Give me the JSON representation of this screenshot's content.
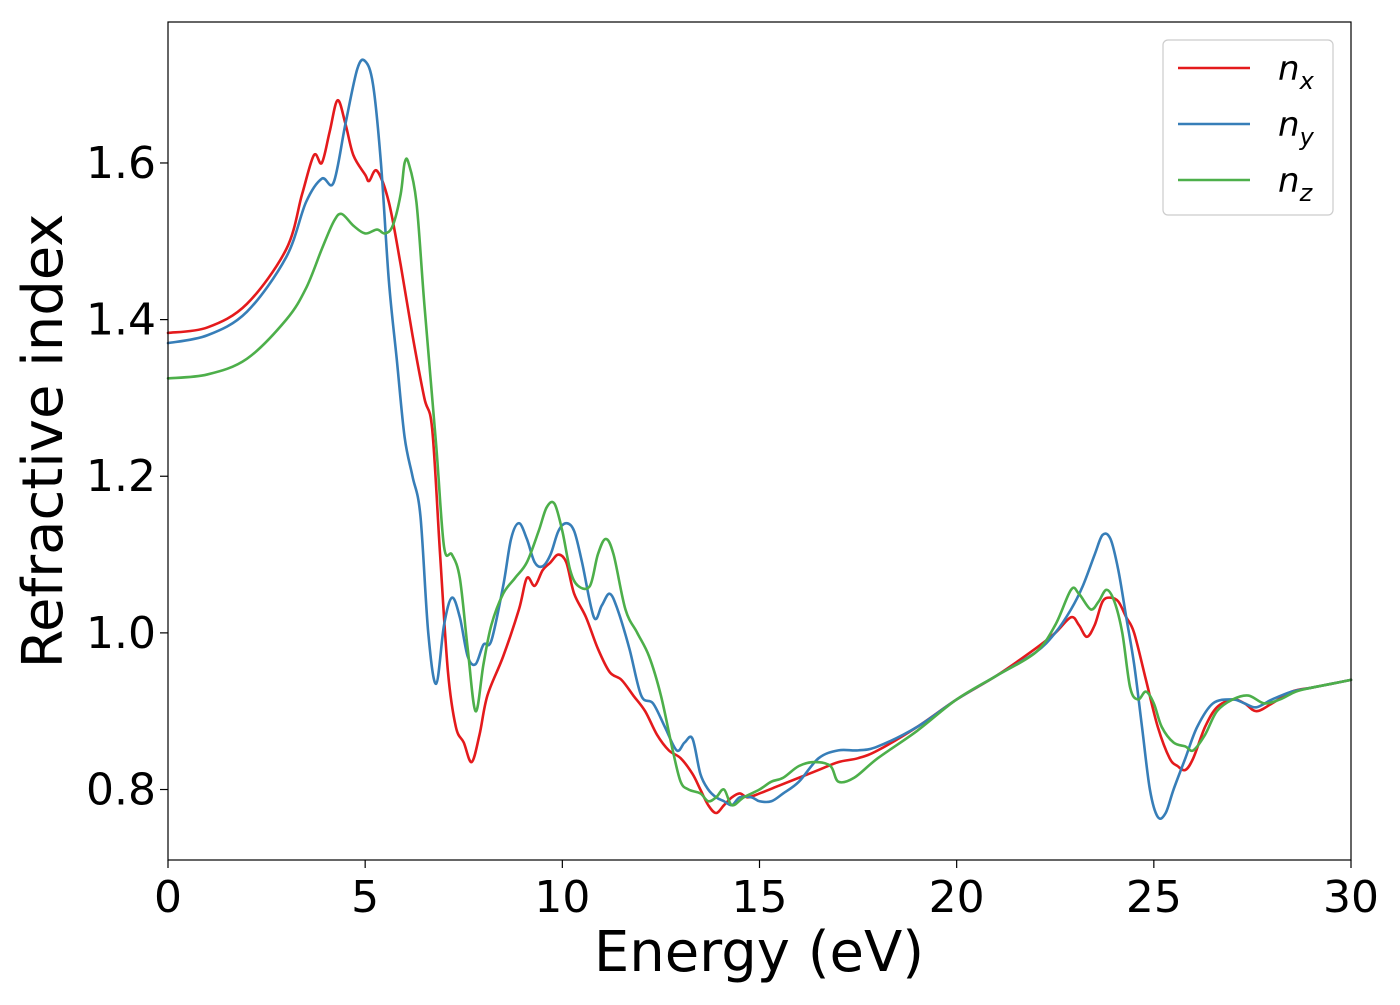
{
  "chart_data": {
    "type": "line",
    "title": "",
    "xlabel": "Energy (eV)",
    "ylabel": "Refractive index",
    "xlim": [
      0,
      30
    ],
    "ylim": [
      0.71,
      1.78
    ],
    "xticks": [
      0,
      5,
      10,
      15,
      20,
      25,
      30
    ],
    "yticks": [
      0.8,
      1.0,
      1.2,
      1.4,
      1.6
    ],
    "xtick_labels": [
      "0",
      "5",
      "10",
      "15",
      "20",
      "25",
      "30"
    ],
    "ytick_labels": [
      "0.8",
      "1.0",
      "1.2",
      "1.4",
      "1.6"
    ],
    "grid": false,
    "legend_position": "top-right",
    "series": [
      {
        "name": "n_x",
        "legend_main": "n",
        "legend_sub": "x",
        "color": "#e41a1c",
        "x": [
          0,
          1,
          2,
          3,
          3.4,
          3.7,
          3.9,
          4.1,
          4.3,
          4.5,
          4.7,
          5.0,
          5.1,
          5.3,
          5.6,
          5.9,
          6.2,
          6.5,
          6.7,
          6.9,
          7.1,
          7.3,
          7.5,
          7.7,
          7.9,
          8.1,
          8.5,
          8.9,
          9.1,
          9.3,
          9.5,
          9.7,
          9.9,
          10.1,
          10.3,
          10.6,
          10.9,
          11.2,
          11.5,
          11.8,
          12.1,
          12.4,
          12.7,
          13.0,
          13.3,
          13.5,
          13.7,
          13.9,
          14.1,
          14.3,
          14.5,
          14.7,
          15.0,
          15.5,
          16.0,
          16.5,
          17.0,
          17.5,
          18.0,
          19.0,
          20.0,
          21.0,
          22.0,
          22.5,
          22.9,
          23.1,
          23.3,
          23.5,
          23.7,
          23.9,
          24.1,
          24.3,
          24.5,
          24.8,
          25.1,
          25.4,
          25.6,
          25.8,
          26.0,
          26.3,
          26.6,
          27.0,
          27.3,
          27.6,
          28.0,
          28.5,
          29.0,
          29.5,
          30.0
        ],
        "values": [
          1.383,
          1.39,
          1.42,
          1.49,
          1.56,
          1.61,
          1.6,
          1.64,
          1.68,
          1.65,
          1.61,
          1.585,
          1.577,
          1.59,
          1.55,
          1.47,
          1.38,
          1.3,
          1.26,
          1.1,
          0.95,
          0.88,
          0.86,
          0.835,
          0.87,
          0.92,
          0.97,
          1.03,
          1.07,
          1.06,
          1.08,
          1.09,
          1.1,
          1.09,
          1.05,
          1.02,
          0.98,
          0.95,
          0.94,
          0.92,
          0.9,
          0.87,
          0.85,
          0.84,
          0.82,
          0.8,
          0.78,
          0.77,
          0.78,
          0.79,
          0.795,
          0.79,
          0.795,
          0.805,
          0.815,
          0.825,
          0.835,
          0.84,
          0.85,
          0.88,
          0.915,
          0.945,
          0.98,
          1.0,
          1.02,
          1.01,
          0.995,
          1.01,
          1.04,
          1.045,
          1.04,
          1.02,
          1.0,
          0.94,
          0.88,
          0.84,
          0.83,
          0.825,
          0.84,
          0.88,
          0.905,
          0.915,
          0.91,
          0.9,
          0.91,
          0.925,
          0.93,
          0.935,
          0.94
        ]
      },
      {
        "name": "n_y",
        "legend_main": "n",
        "legend_sub": "y",
        "color": "#377eb8",
        "x": [
          0,
          1,
          2,
          3,
          3.5,
          3.9,
          4.2,
          4.5,
          4.8,
          5.0,
          5.2,
          5.4,
          5.6,
          5.8,
          6.0,
          6.2,
          6.4,
          6.6,
          6.8,
          7.0,
          7.2,
          7.4,
          7.6,
          7.8,
          8.0,
          8.2,
          8.5,
          8.7,
          8.9,
          9.1,
          9.3,
          9.5,
          9.7,
          9.9,
          10.1,
          10.3,
          10.5,
          10.8,
          11.0,
          11.2,
          11.4,
          11.7,
          12.0,
          12.3,
          12.6,
          12.9,
          13.1,
          13.3,
          13.5,
          13.7,
          13.9,
          14.1,
          14.3,
          14.5,
          14.8,
          15.0,
          15.3,
          15.6,
          16.0,
          16.5,
          17.0,
          17.5,
          18.0,
          19.0,
          20.0,
          21.0,
          22.0,
          22.5,
          22.9,
          23.2,
          23.5,
          23.7,
          23.9,
          24.1,
          24.3,
          24.5,
          24.7,
          24.9,
          25.1,
          25.3,
          25.5,
          25.8,
          26.1,
          26.5,
          27.0,
          27.3,
          27.6,
          28.0,
          28.5,
          29.0,
          29.5,
          30.0
        ],
        "values": [
          1.37,
          1.38,
          1.41,
          1.48,
          1.55,
          1.58,
          1.575,
          1.65,
          1.72,
          1.73,
          1.7,
          1.6,
          1.45,
          1.35,
          1.25,
          1.2,
          1.15,
          1.0,
          0.935,
          1.01,
          1.045,
          1.02,
          0.97,
          0.96,
          0.985,
          0.99,
          1.06,
          1.12,
          1.14,
          1.12,
          1.09,
          1.085,
          1.1,
          1.13,
          1.14,
          1.13,
          1.09,
          1.02,
          1.035,
          1.05,
          1.03,
          0.98,
          0.92,
          0.91,
          0.88,
          0.85,
          0.86,
          0.865,
          0.82,
          0.8,
          0.79,
          0.785,
          0.78,
          0.79,
          0.79,
          0.785,
          0.785,
          0.795,
          0.81,
          0.84,
          0.85,
          0.85,
          0.855,
          0.88,
          0.915,
          0.945,
          0.975,
          1.0,
          1.03,
          1.06,
          1.1,
          1.125,
          1.12,
          1.08,
          1.02,
          0.96,
          0.88,
          0.8,
          0.765,
          0.77,
          0.8,
          0.84,
          0.88,
          0.91,
          0.915,
          0.91,
          0.905,
          0.915,
          0.925,
          0.93,
          0.935,
          0.94
        ]
      },
      {
        "name": "n_z",
        "legend_main": "n",
        "legend_sub": "z",
        "color": "#4daf4a",
        "x": [
          0,
          1,
          2,
          3,
          3.5,
          3.9,
          4.2,
          4.4,
          4.7,
          5.0,
          5.3,
          5.5,
          5.7,
          5.9,
          6.0,
          6.1,
          6.3,
          6.5,
          6.8,
          7.0,
          7.2,
          7.4,
          7.6,
          7.8,
          8.0,
          8.2,
          8.5,
          8.8,
          9.1,
          9.4,
          9.6,
          9.8,
          10.0,
          10.2,
          10.4,
          10.7,
          10.9,
          11.1,
          11.3,
          11.6,
          11.9,
          12.2,
          12.5,
          12.8,
          13.0,
          13.2,
          13.5,
          13.7,
          13.9,
          14.1,
          14.3,
          14.6,
          15.0,
          15.3,
          15.6,
          16.0,
          16.4,
          16.8,
          17.0,
          17.4,
          18.0,
          19.0,
          20.0,
          21.0,
          22.0,
          22.5,
          22.9,
          23.1,
          23.4,
          23.6,
          23.8,
          24.0,
          24.2,
          24.4,
          24.6,
          24.8,
          25.0,
          25.2,
          25.5,
          25.8,
          26.0,
          26.3,
          26.6,
          27.0,
          27.4,
          27.8,
          28.2,
          28.6,
          29.0,
          29.5,
          30.0
        ],
        "values": [
          1.325,
          1.33,
          1.35,
          1.4,
          1.44,
          1.49,
          1.525,
          1.535,
          1.52,
          1.51,
          1.515,
          1.51,
          1.52,
          1.56,
          1.6,
          1.6,
          1.55,
          1.42,
          1.24,
          1.11,
          1.1,
          1.07,
          0.98,
          0.9,
          0.96,
          1.01,
          1.05,
          1.07,
          1.09,
          1.13,
          1.16,
          1.165,
          1.13,
          1.08,
          1.06,
          1.06,
          1.1,
          1.12,
          1.1,
          1.03,
          1.0,
          0.97,
          0.92,
          0.85,
          0.81,
          0.8,
          0.795,
          0.785,
          0.79,
          0.8,
          0.78,
          0.79,
          0.8,
          0.81,
          0.815,
          0.83,
          0.835,
          0.83,
          0.81,
          0.815,
          0.84,
          0.875,
          0.915,
          0.945,
          0.975,
          1.01,
          1.055,
          1.05,
          1.03,
          1.04,
          1.055,
          1.04,
          1.0,
          0.93,
          0.915,
          0.925,
          0.91,
          0.88,
          0.86,
          0.855,
          0.85,
          0.87,
          0.9,
          0.915,
          0.92,
          0.91,
          0.915,
          0.925,
          0.93,
          0.935,
          0.94
        ]
      }
    ]
  }
}
